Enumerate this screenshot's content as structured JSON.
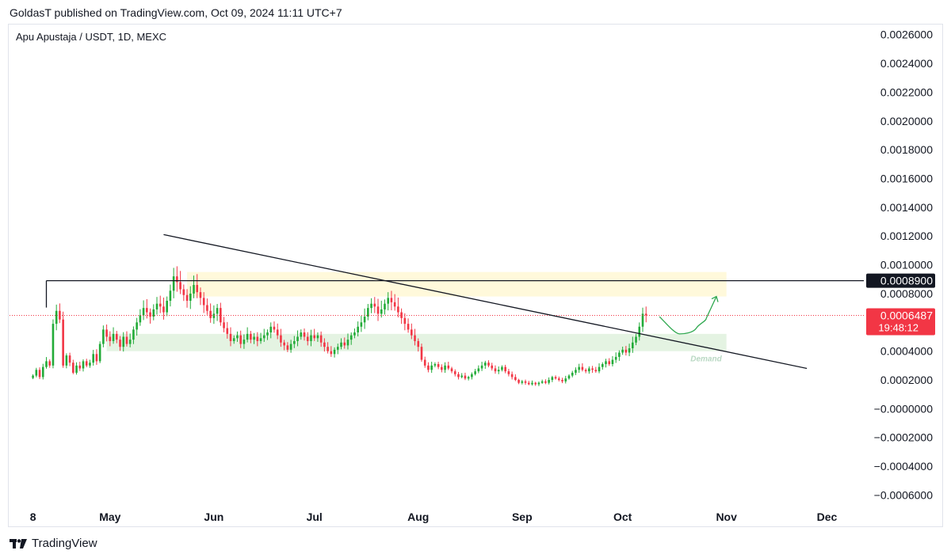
{
  "header": {
    "published": "GoldasT published on TradingView.com, Oct 09, 2024 11:11 UTC+7"
  },
  "symbol": {
    "label": "Apu Apustaja / USDT, 1D, MEXC"
  },
  "footer": {
    "brand": "TradingView",
    "logo_icon": "tradingview-logo-icon"
  },
  "colors": {
    "up": "#26a69a",
    "up_bright": "#22ab38",
    "down": "#f23645",
    "supply_zone": "#fff9db",
    "demand_zone": "#e4f3e2",
    "projection": "#2fa84f",
    "price_line": "#f23645"
  },
  "chart_data": {
    "type": "candlestick",
    "title": "Apu Apustaja / USDT, 1D, MEXC",
    "y_ticks": [
      "0.0026000",
      "0.0024000",
      "0.0022000",
      "0.0020000",
      "0.0018000",
      "0.0016000",
      "0.0014000",
      "0.0012000",
      "0.0010000",
      "0.0008000",
      "0.0006000",
      "0.0004000",
      "0.0002000",
      "−0.0000000",
      "−0.0002000",
      "−0.0004000",
      "−0.0006000"
    ],
    "y_tick_values": [
      0.0026,
      0.0024,
      0.0022,
      0.002,
      0.0018,
      0.0016,
      0.0014,
      0.0012,
      0.001,
      0.0008,
      0.0006,
      0.0004,
      0.0002,
      0,
      -0.0002,
      -0.0004,
      -0.0006
    ],
    "ylim": [
      -0.00068,
      0.00267
    ],
    "x_ticks": [
      "8",
      "May",
      "Jun",
      "Jul",
      "Aug",
      "Sep",
      "Oct",
      "Nov",
      "Dec"
    ],
    "x_tick_dates": [
      "2024-04-08",
      "2024-05-01",
      "2024-06-01",
      "2024-07-01",
      "2024-08-01",
      "2024-09-01",
      "2024-10-01",
      "2024-11-01",
      "2024-12-01"
    ],
    "x_range": [
      "2024-04-01",
      "2024-12-12"
    ],
    "first_candle_date": "2024-04-08",
    "closes": [
      0.00023,
      0.00027,
      0.00022,
      0.00029,
      0.00033,
      0.0003,
      0.00059,
      0.00068,
      0.00062,
      0.0003,
      0.00037,
      0.00032,
      0.00025,
      0.0003,
      0.00028,
      0.00033,
      0.0003,
      0.00032,
      0.00038,
      0.00033,
      0.00045,
      0.00055,
      0.0005,
      0.00047,
      0.00052,
      0.00048,
      0.00043,
      0.0005,
      0.00045,
      0.00048,
      0.00055,
      0.0006,
      0.00065,
      0.0007,
      0.00067,
      0.00064,
      0.00069,
      0.00073,
      0.00071,
      0.00067,
      0.00075,
      0.00082,
      0.00092,
      0.00088,
      0.00083,
      0.00079,
      0.00075,
      0.0008,
      0.00086,
      0.00081,
      0.00077,
      0.00072,
      0.00068,
      0.00063,
      0.00066,
      0.0007,
      0.0006,
      0.00056,
      0.00052,
      0.00047,
      0.00049,
      0.00051,
      0.00045,
      0.00048,
      0.00052,
      0.00048,
      0.0005,
      0.00047,
      0.00049,
      0.00051,
      0.00053,
      0.00057,
      0.00055,
      0.00051,
      0.00046,
      0.00044,
      0.00041,
      0.00045,
      0.00047,
      0.0005,
      0.00053,
      0.0005,
      0.00047,
      0.00051,
      0.00049,
      0.00051,
      0.00046,
      0.00043,
      0.0004,
      0.00038,
      0.00041,
      0.00043,
      0.00046,
      0.00044,
      0.00048,
      0.00051,
      0.00053,
      0.00057,
      0.0006,
      0.00064,
      0.0007,
      0.00073,
      0.00071,
      0.00066,
      0.00069,
      0.00073,
      0.00077,
      0.00074,
      0.00071,
      0.00067,
      0.00063,
      0.00059,
      0.00055,
      0.00051,
      0.00047,
      0.00043,
      0.00034,
      0.0003,
      0.00027,
      0.0003,
      0.00031,
      0.00029,
      0.00027,
      0.0003,
      0.00028,
      0.00026,
      0.00024,
      0.00022,
      0.00023,
      0.00021,
      0.00022,
      0.00024,
      0.00026,
      0.00028,
      0.0003,
      0.00032,
      0.0003,
      0.00028,
      0.00026,
      0.00027,
      0.00029,
      0.00026,
      0.00024,
      0.00022,
      0.0002,
      0.00018,
      0.00019,
      0.00018,
      0.00017,
      0.00018,
      0.00017,
      0.00018,
      0.00019,
      0.00018,
      0.0002,
      0.00022,
      0.00021,
      0.0002,
      0.00019,
      0.00021,
      0.00023,
      0.00025,
      0.00027,
      0.00029,
      0.00027,
      0.00026,
      0.00028,
      0.00027,
      0.00026,
      0.00029,
      0.00031,
      0.00033,
      0.00031,
      0.00034,
      0.00036,
      0.00039,
      0.00041,
      0.00039,
      0.00042,
      0.00046,
      0.0005,
      0.00057,
      0.00066,
      0.00065
    ],
    "last_price": "0.0006487",
    "countdown": "19:48:12",
    "horizontal_level": {
      "value": 0.00089,
      "label": "0.0008900"
    },
    "supply_zone": {
      "from": 0.00078,
      "to": 0.00095,
      "x_from": "2024-05-24",
      "x_to": "2024-11-01"
    },
    "demand_zone": {
      "from": 0.0004,
      "to": 0.00052,
      "x_from": "2024-04-30",
      "x_to": "2024-11-01",
      "label": "Demand"
    },
    "trendline": {
      "from": {
        "date": "2024-05-17",
        "value": 0.00121
      },
      "to": {
        "date": "2024-11-25",
        "value": 0.00028
      }
    },
    "level_line_start": "2024-04-12",
    "projection": [
      {
        "date": "2024-10-12",
        "value": 0.00064
      },
      {
        "date": "2024-10-18",
        "value": 0.00052
      },
      {
        "date": "2024-10-23",
        "value": 0.00056
      },
      {
        "date": "2024-10-26",
        "value": 0.00063
      },
      {
        "date": "2024-10-29",
        "value": 0.00078
      }
    ]
  }
}
